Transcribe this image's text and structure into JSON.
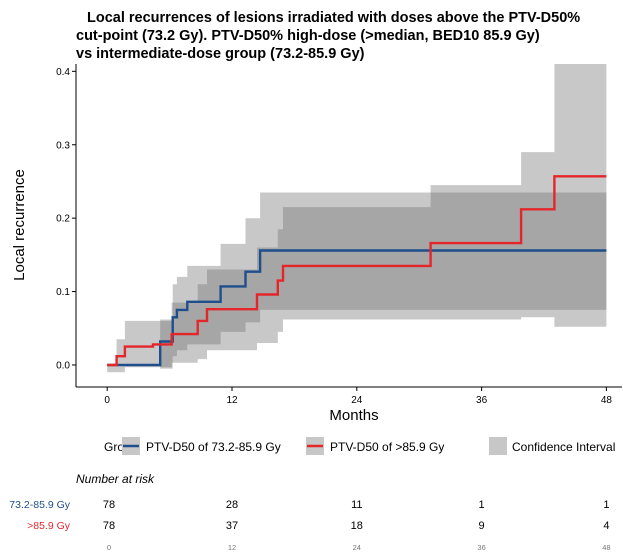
{
  "chart_data": {
    "type": "line",
    "title_lines": [
      "Local recurrences of lesions irradiated with doses above the PTV-D50%",
      "cut-point (73.2 Gy). PTV-D50% high-dose (>median, BED10 85.9 Gy)",
      "vs intermediate-dose group (73.2-85.9 Gy)"
    ],
    "xlabel": "Months",
    "ylabel": "Local recurrence",
    "xlim": [
      -3,
      49.5
    ],
    "ylim": [
      -0.03,
      0.41
    ],
    "xticks": [
      0,
      12,
      24,
      36,
      48
    ],
    "yticks": [
      0.0,
      0.1,
      0.2,
      0.3,
      0.4
    ],
    "ytick_labels": [
      "0.0",
      "0.1",
      "0.2",
      "0.3",
      "0.4"
    ],
    "step": true,
    "series": [
      {
        "name": "PTV-D50 of 73.2-85.9 Gy",
        "color": "#1f4e8c",
        "x": [
          0,
          5,
          5.1,
          6.3,
          6.7,
          7.7,
          10.9,
          13.3,
          14.7,
          48
        ],
        "y": [
          0.0,
          0.0,
          0.032,
          0.065,
          0.075,
          0.086,
          0.107,
          0.127,
          0.156,
          0.156
        ],
        "ci_lower": [
          0.0,
          0.0,
          -0.005,
          0.012,
          0.02,
          0.028,
          0.045,
          0.058,
          0.075,
          0.075
        ],
        "ci_upper": [
          0.0,
          0.0,
          0.062,
          0.11,
          0.12,
          0.135,
          0.165,
          0.2,
          0.235,
          0.235
        ]
      },
      {
        "name": "PTV-D50 of >85.9 Gy",
        "color": "#e4262b",
        "x": [
          0,
          0.9,
          1.7,
          4.4,
          6.2,
          8.7,
          9.6,
          14.4,
          16.4,
          16.9,
          31.1,
          39.8,
          43.0,
          48
        ],
        "y": [
          0.0,
          0.012,
          0.025,
          0.028,
          0.042,
          0.06,
          0.076,
          0.096,
          0.115,
          0.135,
          0.166,
          0.212,
          0.257,
          0.257
        ],
        "ci_lower": [
          -0.01,
          -0.01,
          -0.003,
          -0.003,
          0.003,
          0.008,
          0.02,
          0.03,
          0.045,
          0.062,
          0.062,
          0.065,
          0.052,
          0.052
        ],
        "ci_upper": [
          0.0,
          0.035,
          0.06,
          0.06,
          0.085,
          0.11,
          0.13,
          0.16,
          0.185,
          0.215,
          0.245,
          0.29,
          0.41,
          0.41
        ]
      }
    ],
    "legend": {
      "title": "Group:",
      "placement": "bottom",
      "ci_label": "Confidence Interval",
      "ci_color": "#c7c7c7"
    },
    "risk_table": {
      "title": "Number at risk",
      "times": [
        0,
        12,
        24,
        36,
        48
      ],
      "rows": [
        {
          "label": "73.2-85.9 Gy",
          "color": "#1f4e8c",
          "counts": [
            78,
            28,
            11,
            1,
            1
          ]
        },
        {
          "label": ">85.9 Gy",
          "color": "#e4262b",
          "counts": [
            78,
            37,
            18,
            9,
            4
          ]
        }
      ]
    }
  }
}
